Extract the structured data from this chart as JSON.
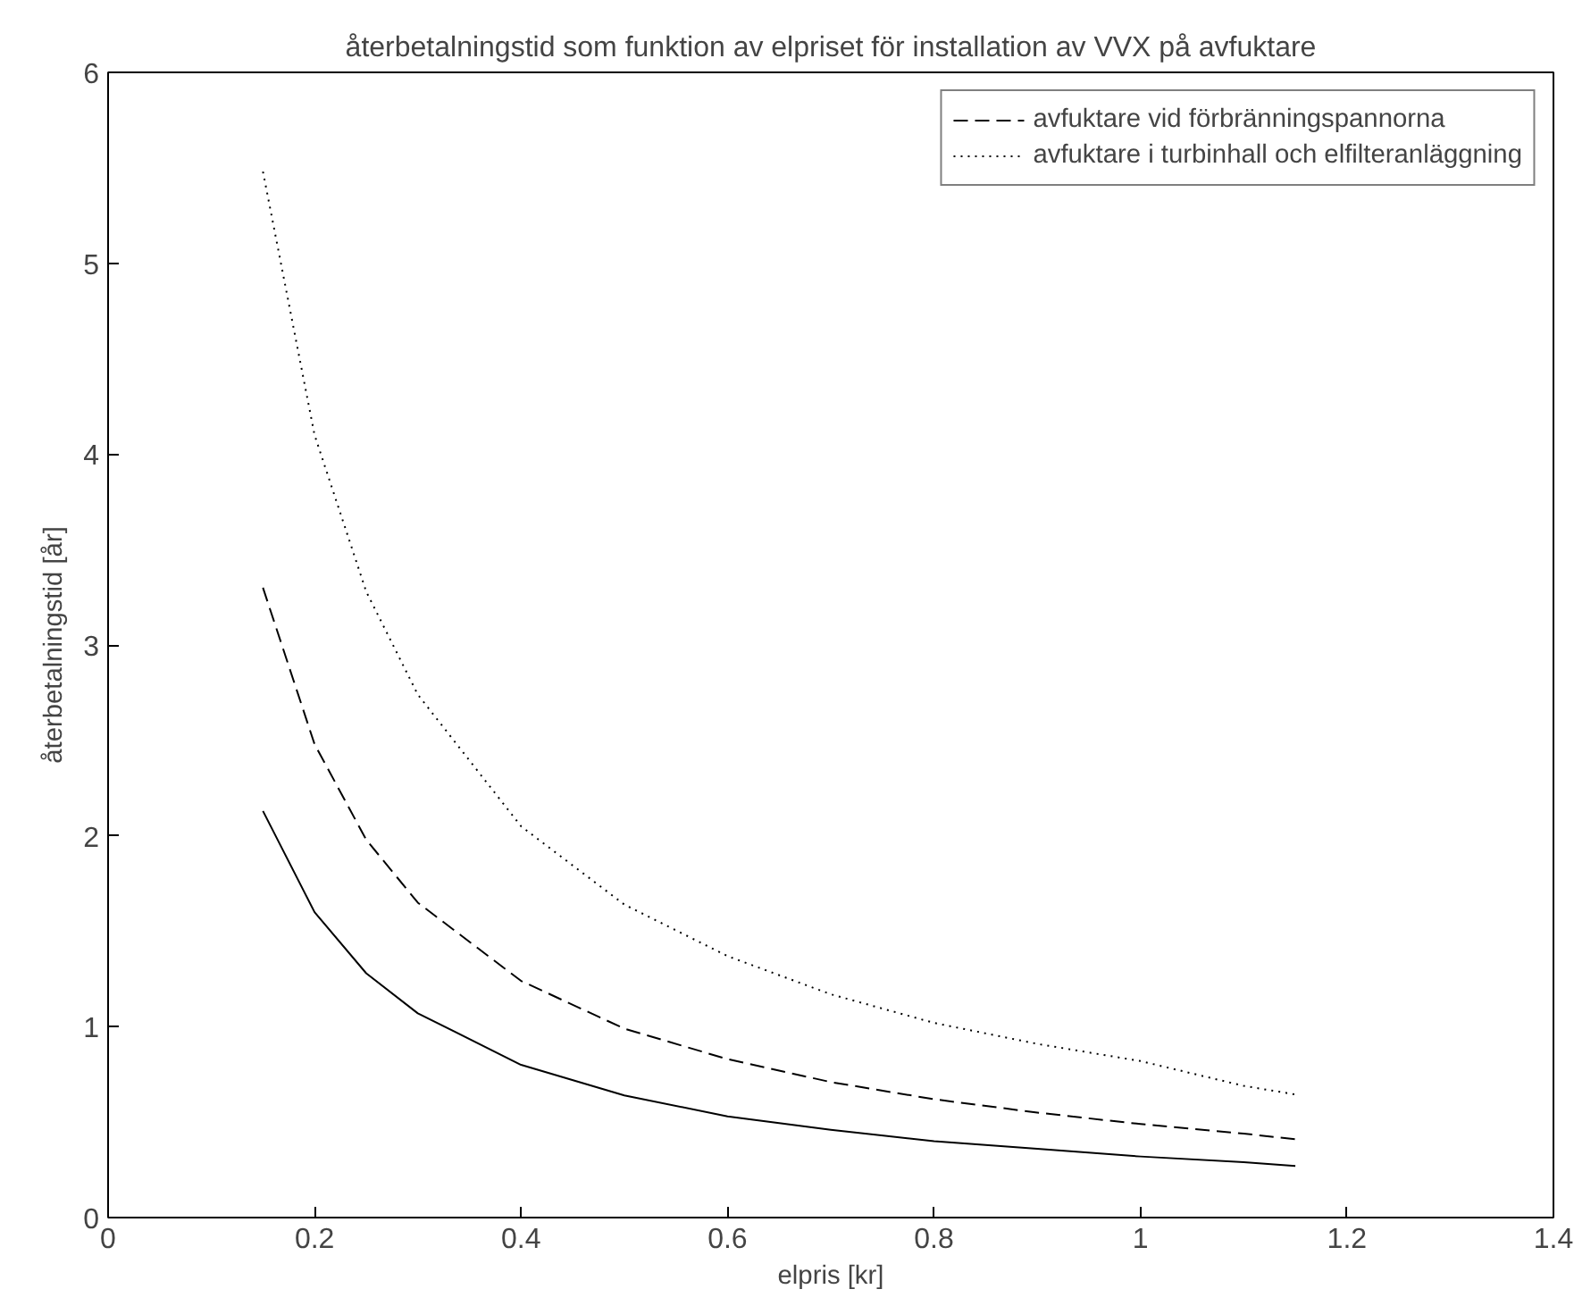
{
  "chart_data": {
    "type": "line",
    "title": "återbetalningstid som funktion av elpriset för installation av VVX på avfuktare",
    "xlabel": "elpris [kr]",
    "ylabel": "återbetalningstid [år]",
    "xlim": [
      0,
      1.4
    ],
    "ylim": [
      0,
      6
    ],
    "xticks": [
      0,
      0.2,
      0.4,
      0.6,
      0.8,
      1,
      1.2,
      1.4
    ],
    "yticks": [
      0,
      1,
      2,
      3,
      4,
      5,
      6
    ],
    "grid": false,
    "legend": "top right",
    "marker": "none",
    "series": [
      {
        "color": "#000000",
        "line_style": "solid",
        "x": [
          0.15,
          0.2,
          0.25,
          0.3,
          0.4,
          0.5,
          0.6,
          0.7,
          0.8,
          0.9,
          1.0,
          1.1,
          1.15
        ],
        "values": [
          2.13,
          1.6,
          1.28,
          1.07,
          0.8,
          0.64,
          0.53,
          0.46,
          0.4,
          0.36,
          0.32,
          0.29,
          0.27
        ]
      },
      {
        "name": "avfuktare vid förbränningspannorna",
        "color": "#000000",
        "line_style": "dashed",
        "x": [
          0.15,
          0.2,
          0.25,
          0.3,
          0.4,
          0.5,
          0.6,
          0.7,
          0.8,
          0.9,
          1.0,
          1.1,
          1.15
        ],
        "values": [
          3.3,
          2.48,
          1.98,
          1.65,
          1.24,
          0.99,
          0.83,
          0.71,
          0.62,
          0.55,
          0.49,
          0.44,
          0.41
        ]
      },
      {
        "name": "avfuktare i turbinhall och elfilteranläggning",
        "color": "#000000",
        "line_style": "dotted",
        "x": [
          0.15,
          0.2,
          0.25,
          0.3,
          0.4,
          0.5,
          0.6,
          0.7,
          0.8,
          0.9,
          1.0,
          1.1,
          1.15
        ],
        "values": [
          5.48,
          4.1,
          3.28,
          2.74,
          2.05,
          1.64,
          1.37,
          1.17,
          1.02,
          0.91,
          0.82,
          0.69,
          0.645
        ]
      }
    ]
  }
}
